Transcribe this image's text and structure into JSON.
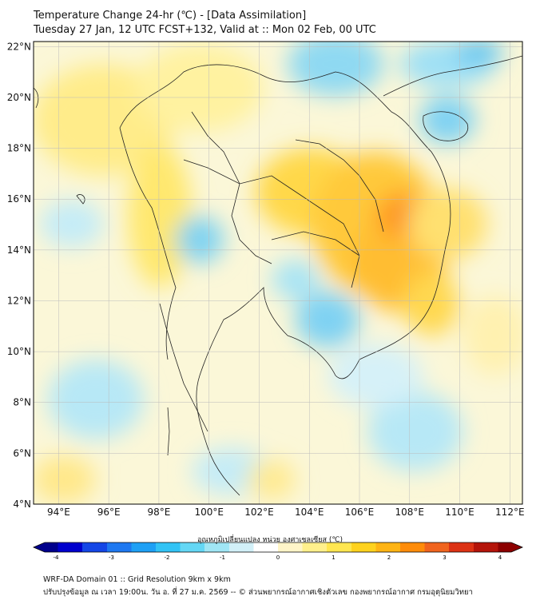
{
  "title": {
    "line1": "Temperature Change 24-hr (℃) - [Data Assimilation]",
    "line2": "Tuesday 27 Jan, 12 UTC FCST+132, Valid at :: Mon 02 Feb, 00 UTC"
  },
  "map": {
    "lon_range": [
      93,
      112.5
    ],
    "lat_range": [
      4,
      22.2
    ],
    "lat_ticks": [
      "22°N",
      "20°N",
      "18°N",
      "16°N",
      "14°N",
      "12°N",
      "10°N",
      "8°N",
      "6°N",
      "4°N"
    ],
    "lat_values": [
      22,
      20,
      18,
      16,
      14,
      12,
      10,
      8,
      6,
      4
    ],
    "lon_ticks": [
      "94°E",
      "96°E",
      "98°E",
      "100°E",
      "102°E",
      "104°E",
      "106°E",
      "108°E",
      "110°E",
      "112°E"
    ],
    "lon_values": [
      94,
      96,
      98,
      100,
      102,
      104,
      106,
      108,
      110,
      112
    ],
    "grid": true
  },
  "colorbar": {
    "title": "อุณหภูมิเปลี่ยนแปลง หน่วย องศาเซลเซียส (℃)",
    "ticks": [
      "-4",
      "-3",
      "-2",
      "-1",
      "0",
      "1",
      "2",
      "3",
      "4"
    ],
    "tick_values": [
      -4,
      -3,
      -2,
      -1,
      0,
      1,
      2,
      3,
      4
    ],
    "colors": [
      "#00008c",
      "#0000cd",
      "#1446e6",
      "#1e78f0",
      "#1ea0f5",
      "#32c3f5",
      "#64d7f5",
      "#a0e6f5",
      "#d2f0f8",
      "#ffffff",
      "#fff5c8",
      "#fff08c",
      "#ffe650",
      "#ffd21e",
      "#ffb414",
      "#ff8c0a",
      "#f0641e",
      "#dc3214",
      "#b4140a",
      "#8c0000"
    ]
  },
  "footer": {
    "line1": "WRF-DA Domain 01 :: Grid Resolution 9km x 9km",
    "line2": "ปรับปรุงข้อมูล ณ เวลา 19:00น. วัน อ. ที่ 27 ม.ค. 2569 -- © ส่วนพยากรณ์อากาศเชิงตัวเลข กองพยากรณ์อากาศ กรมอุตุนิยมวิทยา"
  }
}
